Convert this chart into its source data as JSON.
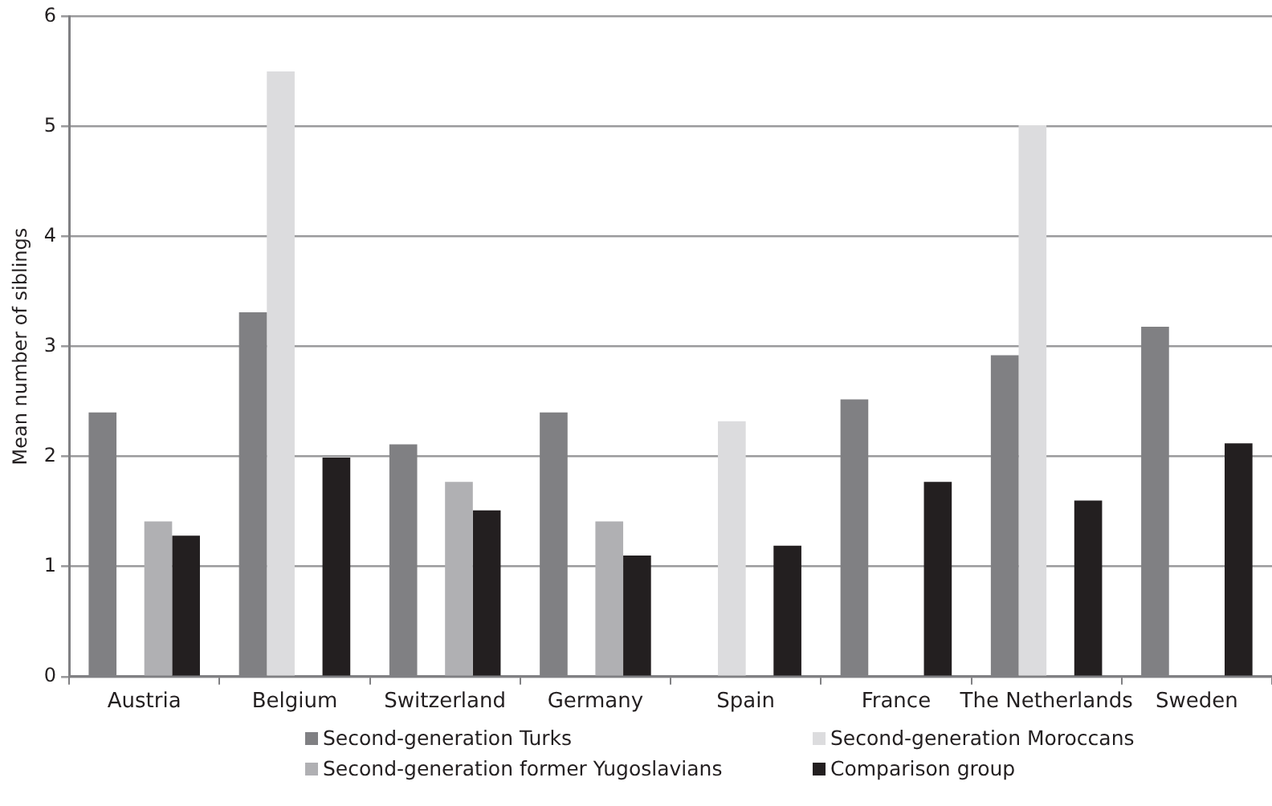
{
  "chart_data": {
    "type": "bar",
    "ylabel": "Mean number of siblings",
    "categories": [
      "Austria",
      "Belgium",
      "Switzerland",
      "Germany",
      "Spain",
      "France",
      "The Netherlands",
      "Sweden"
    ],
    "series": [
      {
        "name": "Second-generation Turks",
        "color": "#808083",
        "values": [
          2.4,
          3.31,
          2.11,
          2.4,
          null,
          2.52,
          2.92,
          3.18
        ]
      },
      {
        "name": "Second-generation Moroccans",
        "color": "#dcdcde",
        "values": [
          null,
          5.5,
          null,
          null,
          2.32,
          null,
          5.01,
          null
        ]
      },
      {
        "name": "Second-generation former Yugoslavians",
        "color": "#b0b0b3",
        "values": [
          1.41,
          null,
          1.77,
          1.41,
          null,
          null,
          null,
          null
        ]
      },
      {
        "name": "Comparison group",
        "color": "#231f20",
        "values": [
          1.28,
          1.99,
          1.51,
          1.1,
          1.19,
          1.77,
          1.6,
          2.12
        ]
      }
    ],
    "ylim": [
      0,
      6
    ],
    "yticks": [
      0,
      1,
      2,
      3,
      4,
      5,
      6
    ],
    "grid": "y",
    "legend": "bottom"
  }
}
